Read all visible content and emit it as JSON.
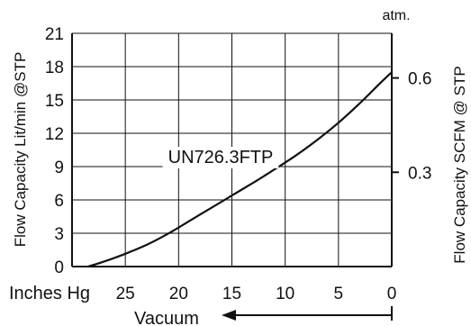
{
  "chart_data": {
    "type": "line",
    "title": "",
    "series": [
      {
        "name": "UN726.3FTP",
        "x": [
          28.5,
          27,
          25,
          23,
          21,
          19,
          17,
          15,
          13,
          11,
          9,
          7,
          5,
          3,
          1,
          0
        ],
        "y": [
          0,
          0.45,
          1.15,
          1.95,
          2.95,
          4.1,
          5.25,
          6.4,
          7.55,
          8.75,
          10.0,
          11.4,
          12.95,
          14.7,
          16.6,
          17.5
        ]
      }
    ],
    "x_axis": {
      "unit_label": "Inches Hg",
      "sublabel": "Vacuum",
      "ticks": [
        25,
        20,
        15,
        10,
        5,
        0
      ],
      "tick_labels": [
        "25",
        "20",
        "15",
        "10",
        "5",
        "0"
      ],
      "range": [
        30,
        0
      ]
    },
    "y_axis_left": {
      "label": "Flow Capacity Lit/min @STP",
      "ticks": [
        0,
        3,
        6,
        9,
        12,
        15,
        18,
        21
      ],
      "tick_labels": [
        "0",
        "3",
        "6",
        "9",
        "12",
        "15",
        "18",
        "21"
      ],
      "range": [
        0,
        21
      ]
    },
    "y_axis_right": {
      "label": "Flow Capacity SCFM @ STP",
      "unit_label": "atm.",
      "ticks": [
        0.3,
        0.6
      ],
      "tick_labels": [
        "0.3",
        "0.6"
      ],
      "range": [
        0,
        0.742
      ]
    },
    "grid": true,
    "legend": "none",
    "colors": {
      "line": "#111111",
      "grid": "#111111"
    }
  }
}
